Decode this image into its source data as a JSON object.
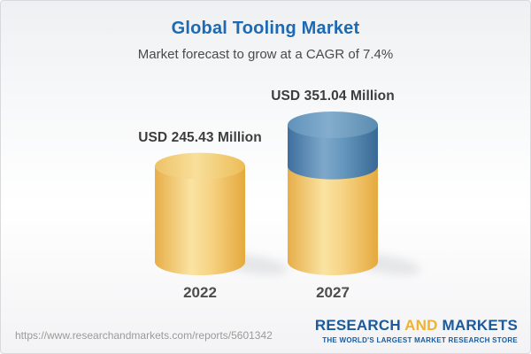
{
  "header": {
    "title": "Global Tooling Market",
    "subtitle": "Market forecast to grow at a CAGR of 7.4%"
  },
  "chart_data": {
    "type": "bar",
    "style": "3d-cylinder",
    "title": "Global Tooling Market",
    "subtitle": "Market forecast to grow at a CAGR of 7.4%",
    "cagr_percent": 7.4,
    "unit": "USD Million",
    "categories": [
      "2022",
      "2027"
    ],
    "values": [
      245.43,
      351.04
    ],
    "value_labels": [
      "USD 245.43 Million",
      "USD 351.04 Million"
    ],
    "ylim": [
      0,
      351.04
    ],
    "axes_visible": false,
    "legend": "none",
    "segment_note": "2027 bar: yellow up to the 2022 level (245.43), blue growth segment above it (105.61)",
    "colors": {
      "base_segment": "#f3cc74",
      "growth_segment": "#5d8fb8",
      "title_blue": "#1d6ab3",
      "label_text": "#3d3d3d"
    }
  },
  "footer": {
    "source_url": "https://www.researchandmarkets.com/reports/5601342",
    "logo": {
      "part1": "RESEARCH",
      "part2": "AND",
      "part3": "MARKETS",
      "tagline": "THE WORLD'S LARGEST MARKET RESEARCH STORE",
      "blue": "#1b5a9b",
      "orange": "#f0b231"
    }
  }
}
